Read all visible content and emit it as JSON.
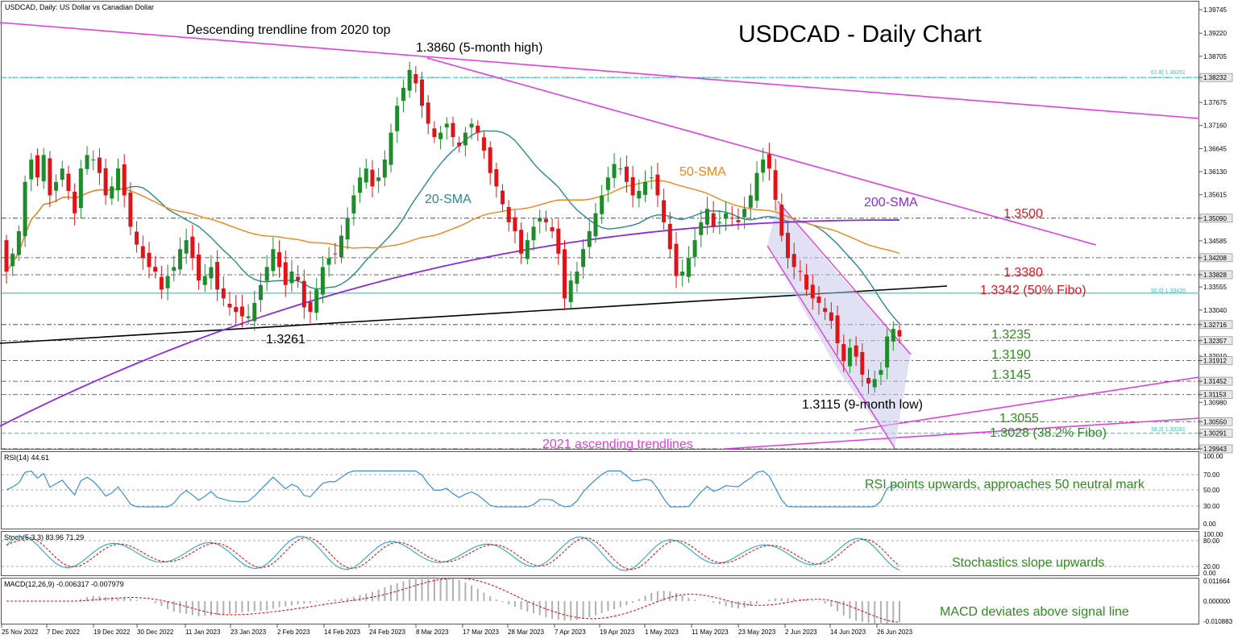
{
  "window_title": "USDCAD, Daily:  US Dollar vs Canadian Dollar",
  "main_title": "USDCAD - Daily Chart",
  "annotations": {
    "trendline_2020": "Descending trendline from 2020 top",
    "high_5m": "1.3860 (5-month high)",
    "sma20": "20-SMA",
    "sma50": "50-SMA",
    "sma200": "200-SMA",
    "low_1_3261": "1.3261",
    "low_9m": "1.3115 (9-month low)",
    "asc_2021": "2021 ascending trendlines"
  },
  "levels": [
    {
      "value": 1.35,
      "label": "1.3500",
      "color": "#e8141c"
    },
    {
      "value": 1.338,
      "label": "1.3380",
      "color": "#e8141c"
    },
    {
      "value": 1.3342,
      "label": "1.3342 (50% Fibo)",
      "color": "#e8141c"
    },
    {
      "value": 1.3235,
      "label": "1.3235",
      "color": "#2e8b1e"
    },
    {
      "value": 1.319,
      "label": "1.3190",
      "color": "#2e8b1e"
    },
    {
      "value": 1.3145,
      "label": "1.3145",
      "color": "#2e8b1e"
    },
    {
      "value": 1.3055,
      "label": "1.3055",
      "color": "#2e8b1e"
    },
    {
      "value": 1.3028,
      "label": "1.3028 (38.2% Fibo)",
      "color": "#2e8b1e"
    }
  ],
  "fibo_labels": {
    "f618": "61.8] 1.38261",
    "f50": "50.0] 1.33420",
    "f382": "38.2] 1.30281"
  },
  "price_axis": [
    "1.39745",
    "1.39220",
    "1.38705",
    "1.38232",
    "1.37675",
    "1.37160",
    "1.36645",
    "1.36130",
    "1.35615",
    "1.35090",
    "1.34585",
    "1.34208",
    "1.33828",
    "1.33555",
    "1.33040",
    "1.32716",
    "1.32357",
    "1.32010",
    "1.31912",
    "1.31452",
    "1.31153",
    "1.30980",
    "1.30550",
    "1.30291",
    "1.29943"
  ],
  "price_axis_values": [
    1.39745,
    1.3922,
    1.38705,
    1.38232,
    1.37675,
    1.3716,
    1.36645,
    1.3613,
    1.35615,
    1.3509,
    1.34585,
    1.34208,
    1.33828,
    1.33555,
    1.3304,
    1.32716,
    1.32357,
    1.3201,
    1.31912,
    1.31452,
    1.31153,
    1.3098,
    1.3055,
    1.30291,
    1.29943
  ],
  "highlighted_axis": [
    "1.38232",
    "1.35090",
    "1.34208",
    "1.33828",
    "1.32716",
    "1.32357",
    "1.31912",
    "1.31452",
    "1.31153",
    "1.30550",
    "1.30291",
    "1.29943"
  ],
  "date_axis": [
    "25 Nov 2022",
    "7 Dec 2022",
    "19 Dec 2022",
    "30 Dec 2022",
    "11 Jan 2023",
    "23 Jan 2023",
    "2 Feb 2023",
    "14 Feb 2023",
    "24 Feb 2023",
    "8 Mar 2023",
    "17 Mar 2023",
    "28 Mar 2023",
    "7 Apr 2023",
    "19 Apr 2023",
    "1 May 2023",
    "11 May 2023",
    "23 May 2023",
    "2 Jun 2023",
    "14 Jun 2023",
    "26 Jun 2023"
  ],
  "rsi": {
    "label": "RSI(14) 44.61",
    "comment": "RSI points upwards, approaches 50 neutral mark",
    "axis": [
      "100.00",
      "70.00",
      "50.00",
      "30.00",
      "0.00"
    ]
  },
  "stoch": {
    "label": "Stoch(5,3,3) 83.96 71.29",
    "comment": "Stochastics slope upwards",
    "axis": [
      "100.00",
      "80.00",
      "20.00",
      "0.00"
    ]
  },
  "macd": {
    "label": "MACD(12,26,9) -0.006317 -0.007979",
    "comment": "MACD deviates above signal line",
    "axis": [
      "0.011664",
      "0.000000",
      "-0.010883"
    ]
  },
  "colors": {
    "bull": "#1e8c2a",
    "bear": "#e01418",
    "sma20": "#2a8a8a",
    "sma50": "#f0851a",
    "sma200": "#8a2be2",
    "trend": "#e040e0",
    "fibo": "#3cd8d8",
    "title": "#000000"
  },
  "chart_data": {
    "type": "candlestick",
    "title": "USDCAD - Daily Chart",
    "x_range": [
      "25 Nov 2022",
      "30 Jun 2023"
    ],
    "ylim": [
      1.2994,
      1.3975
    ],
    "key_points": [
      {
        "date": "2 Feb 2023",
        "value": 1.3261,
        "note": "1.3261"
      },
      {
        "date": "8 Mar 2023",
        "value": 1.386,
        "note": "5-month high"
      },
      {
        "date": "22 Jun 2023",
        "value": 1.3115,
        "note": "9-month low"
      }
    ],
    "closes": [
      1.339,
      1.343,
      1.348,
      1.359,
      1.364,
      1.36,
      1.365,
      1.356,
      1.359,
      1.362,
      1.357,
      1.352,
      1.362,
      1.365,
      1.364,
      1.361,
      1.356,
      1.358,
      1.362,
      1.356,
      1.349,
      1.345,
      1.342,
      1.34,
      1.339,
      1.335,
      1.338,
      1.34,
      1.344,
      1.346,
      1.342,
      1.337,
      1.338,
      1.34,
      1.335,
      1.333,
      1.331,
      1.33,
      1.329,
      1.329,
      1.332,
      1.336,
      1.34,
      1.344,
      1.34,
      1.336,
      1.339,
      1.337,
      1.331,
      1.33,
      1.335,
      1.34,
      1.342,
      1.343,
      1.347,
      1.351,
      1.356,
      1.36,
      1.362,
      1.358,
      1.36,
      1.364,
      1.37,
      1.376,
      1.38,
      1.384,
      1.381,
      1.376,
      1.372,
      1.369,
      1.37,
      1.372,
      1.369,
      1.367,
      1.37,
      1.372,
      1.37,
      1.366,
      1.361,
      1.358,
      1.354,
      1.35,
      1.348,
      1.343,
      1.346,
      1.349,
      1.351,
      1.35,
      1.348,
      1.343,
      1.333,
      1.337,
      1.339,
      1.344,
      1.348,
      1.352,
      1.356,
      1.36,
      1.363,
      1.362,
      1.359,
      1.356,
      1.357,
      1.359,
      1.36,
      1.356,
      1.35,
      1.344,
      1.338,
      1.339,
      1.342,
      1.346,
      1.35,
      1.353,
      1.349,
      1.35,
      1.352,
      1.351,
      1.35,
      1.353,
      1.356,
      1.361,
      1.364,
      1.362,
      1.355,
      1.347,
      1.342,
      1.34,
      1.339,
      1.335,
      1.333,
      1.332,
      1.33,
      1.328,
      1.323,
      1.319,
      1.322,
      1.32,
      1.316,
      1.314,
      1.315,
      1.317,
      1.3245,
      1.3262,
      1.3245
    ]
  }
}
